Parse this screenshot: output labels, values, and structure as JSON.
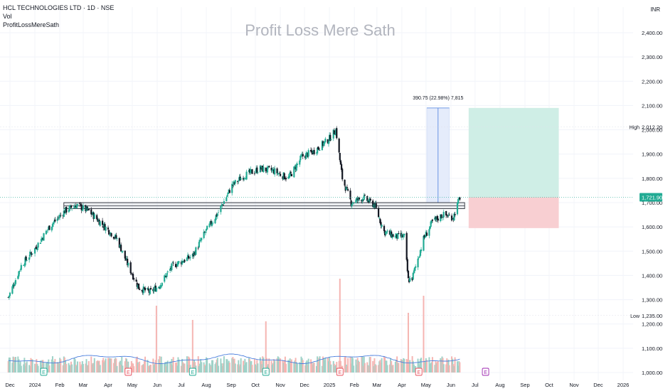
{
  "header": {
    "symbol": "HCL TECHNOLOGIES LTD · 1D · NSE",
    "indicators": [
      "Vol",
      "ProfitLossMereSath"
    ],
    "watermark": "Profit Loss Mere Sath",
    "currency": "INR"
  },
  "colors": {
    "up": "#22ab94",
    "down": "#131722",
    "volume_up": "#9fd2c8",
    "volume_down": "#f5b5b2",
    "volume_ma": "#4a7ede",
    "target_zone": "#cfeee6",
    "stop_zone": "#f8cfd2",
    "measure_zone": "#e5ecfb",
    "earnings_badge": "#e8515d",
    "dividend_badge": "#22ab94",
    "upcoming_badge": "#9c27b0",
    "last_price_bg": "#22ab94"
  },
  "chart_data": {
    "type": "candlestick",
    "x_labels": [
      "Dec",
      "2024",
      "Feb",
      "Mar",
      "Apr",
      "May",
      "Jun",
      "Jul",
      "Aug",
      "Sep",
      "Oct",
      "Nov",
      "Dec",
      "2025",
      "Feb",
      "Mar",
      "Apr",
      "May",
      "Jun",
      "Jul",
      "Aug",
      "Sep",
      "Oct",
      "Nov",
      "Dec",
      "2026"
    ],
    "y_ticks": [
      "2,400.00",
      "2,300.00",
      "2,200.00",
      "2,100.00",
      "2,000.00",
      "1,900.00",
      "1,800.00",
      "1,700.00",
      "1,600.00",
      "1,500.00",
      "1,400.00",
      "1,300.00",
      "1,200.00",
      "1,100.00",
      "1,000.00"
    ],
    "ylim": [
      1000,
      2450
    ],
    "price_path": [
      {
        "date": "2023-11-29",
        "close": 1310
      },
      {
        "date": "2023-12-15",
        "close": 1440
      },
      {
        "date": "2024-01-01",
        "close": 1510
      },
      {
        "date": "2024-01-19",
        "close": 1600
      },
      {
        "date": "2024-02-07",
        "close": 1665
      },
      {
        "date": "2024-02-21",
        "close": 1690
      },
      {
        "date": "2024-03-08",
        "close": 1665
      },
      {
        "date": "2024-03-22",
        "close": 1620
      },
      {
        "date": "2024-04-12",
        "close": 1550
      },
      {
        "date": "2024-04-26",
        "close": 1440
      },
      {
        "date": "2024-05-09",
        "close": 1350
      },
      {
        "date": "2024-05-23",
        "close": 1330
      },
      {
        "date": "2024-06-04",
        "close": 1360
      },
      {
        "date": "2024-06-20",
        "close": 1440
      },
      {
        "date": "2024-07-15",
        "close": 1480
      },
      {
        "date": "2024-07-31",
        "close": 1580
      },
      {
        "date": "2024-08-16",
        "close": 1660
      },
      {
        "date": "2024-09-02",
        "close": 1770
      },
      {
        "date": "2024-09-16",
        "close": 1810
      },
      {
        "date": "2024-10-07",
        "close": 1840
      },
      {
        "date": "2024-10-24",
        "close": 1830
      },
      {
        "date": "2024-11-11",
        "close": 1800
      },
      {
        "date": "2024-11-28",
        "close": 1890
      },
      {
        "date": "2024-12-12",
        "close": 1910
      },
      {
        "date": "2024-12-31",
        "close": 1960
      },
      {
        "date": "2025-01-09",
        "close": 2000
      },
      {
        "date": "2025-01-17",
        "close": 1800
      },
      {
        "date": "2025-01-28",
        "close": 1700
      },
      {
        "date": "2025-02-12",
        "close": 1720
      },
      {
        "date": "2025-02-26",
        "close": 1690
      },
      {
        "date": "2025-03-10",
        "close": 1580
      },
      {
        "date": "2025-03-24",
        "close": 1560
      },
      {
        "date": "2025-04-04",
        "close": 1560
      },
      {
        "date": "2025-04-09",
        "close": 1380
      },
      {
        "date": "2025-04-14",
        "close": 1390
      },
      {
        "date": "2025-04-28",
        "close": 1550
      },
      {
        "date": "2025-05-09",
        "close": 1620
      },
      {
        "date": "2025-05-22",
        "close": 1650
      },
      {
        "date": "2025-06-04",
        "close": 1640
      },
      {
        "date": "2025-06-12",
        "close": 1722
      }
    ],
    "high_low_labels": [
      {
        "label": "High",
        "value": "2,012.20",
        "price": 2012.2
      },
      {
        "label": "Low",
        "value": "1,235.00",
        "price": 1235
      }
    ],
    "last_price": {
      "value": "1,721.90",
      "price": 1721.9
    },
    "resistance_zone": {
      "top": 1700,
      "bottom": 1675,
      "from": "2024-02-06",
      "to": "2025-06-18"
    },
    "measure": {
      "label": "390.75 (22.98%) 7,815",
      "from_price": 1700,
      "to_price": 2090,
      "from": "2025-05-02",
      "to": "2025-05-30"
    },
    "position": {
      "entry": 1721.9,
      "target": 2090,
      "stop": 1595,
      "from": "2025-06-23",
      "to": "2025-10-13"
    },
    "volume_spikes": [
      {
        "date": "2024-05-31",
        "rel": 0.47
      },
      {
        "date": "2024-07-15",
        "rel": 0.37
      },
      {
        "date": "2024-10-14",
        "rel": 0.36
      },
      {
        "date": "2025-01-14",
        "rel": 0.66
      },
      {
        "date": "2025-04-09",
        "rel": 0.42
      },
      {
        "date": "2025-04-28",
        "rel": 0.54
      }
    ],
    "events": [
      {
        "date": "2024-01-12",
        "type": "dividend"
      },
      {
        "date": "2024-04-26",
        "type": "earnings"
      },
      {
        "date": "2024-07-15",
        "type": "dividend"
      },
      {
        "date": "2024-10-14",
        "type": "dividend"
      },
      {
        "date": "2025-01-14",
        "type": "earnings"
      },
      {
        "date": "2025-04-22",
        "type": "earnings"
      },
      {
        "date": "2025-07-14",
        "type": "upcoming"
      }
    ],
    "event_symbol": "E"
  }
}
